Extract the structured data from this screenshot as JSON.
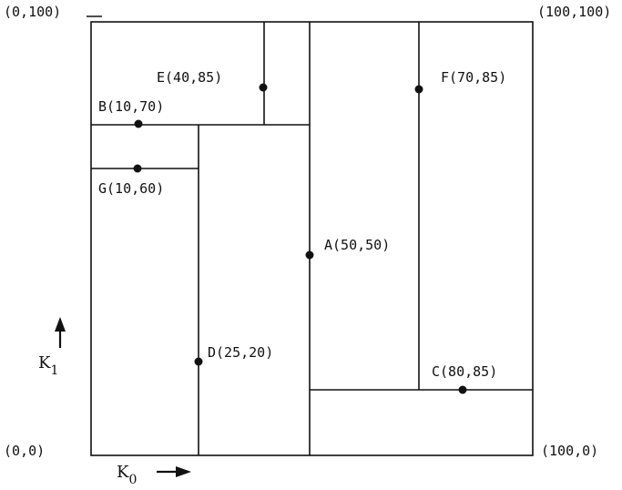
{
  "corners": {
    "top_left": "(0,100)",
    "top_right": "(100,100)",
    "bottom_left": "(0,0)",
    "bottom_right": "(100,0)"
  },
  "axes": {
    "horizontal_symbol": "K",
    "horizontal_subscript": "0",
    "vertical_symbol": "K",
    "vertical_subscript": "1"
  },
  "points": [
    {
      "label": "A(50,50)"
    },
    {
      "label": "B(10,70)"
    },
    {
      "label": "C(80,85)"
    },
    {
      "label": "D(25,20)"
    },
    {
      "label": "E(40,85)"
    },
    {
      "label": "F(70,85)"
    },
    {
      "label": "G(10,60)"
    }
  ]
}
